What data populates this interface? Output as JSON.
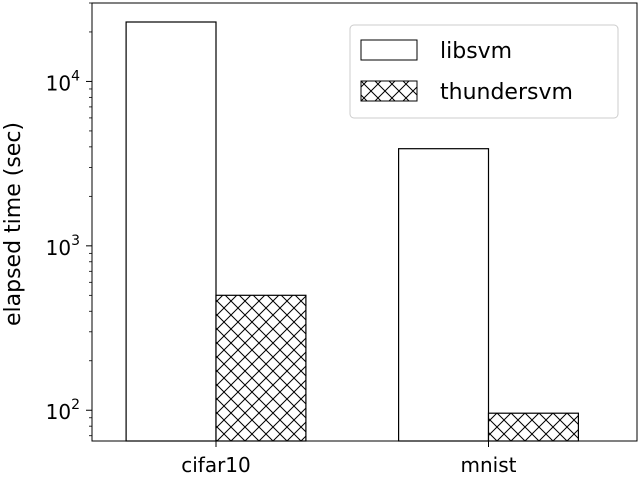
{
  "chart_data": {
    "type": "bar",
    "title": "",
    "xlabel": "",
    "ylabel": "elapsed time (sec)",
    "y_scale": "log",
    "ylim": [
      65,
      30000
    ],
    "y_ticks": [
      {
        "value": 100,
        "base": "10",
        "exp": "2"
      },
      {
        "value": 1000,
        "base": "10",
        "exp": "3"
      },
      {
        "value": 10000,
        "base": "10",
        "exp": "4"
      }
    ],
    "categories": [
      "cifar10",
      "mnist"
    ],
    "series": [
      {
        "name": "libsvm",
        "values": [
          23000,
          3900
        ],
        "fill": "#ffffff",
        "pattern": "none"
      },
      {
        "name": "thundersvm",
        "values": [
          500,
          96
        ],
        "fill": "#ffffff",
        "pattern": "crosshatch"
      }
    ],
    "legend_position": "top-right",
    "grid": false
  }
}
